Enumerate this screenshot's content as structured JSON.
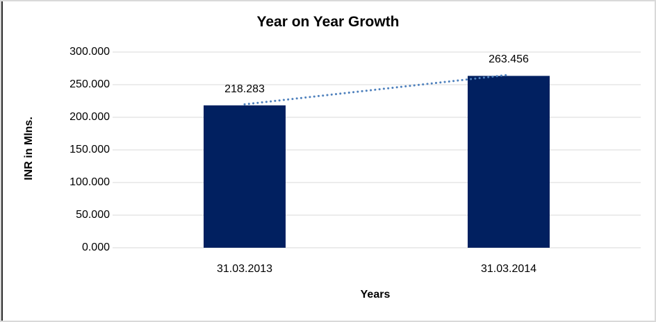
{
  "chart": {
    "title": "Year on Year Growth",
    "y_axis_title": "INR in Mlns.",
    "x_axis_title": "Years"
  },
  "chart_data": {
    "type": "bar",
    "title": "Year on Year Growth",
    "xlabel": "Years",
    "ylabel": "INR in Mlns.",
    "categories": [
      "31.03.2013",
      "31.03.2014"
    ],
    "values": [
      218.283,
      263.456
    ],
    "value_labels": [
      "218.283",
      "263.456"
    ],
    "ylim": [
      0,
      300
    ],
    "yticks": [
      {
        "value": 0,
        "label": "0.000"
      },
      {
        "value": 50,
        "label": "50.000"
      },
      {
        "value": 100,
        "label": "100.000"
      },
      {
        "value": 150,
        "label": "150.000"
      },
      {
        "value": 200,
        "label": "200.000"
      },
      {
        "value": 250,
        "label": "250.000"
      },
      {
        "value": 300,
        "label": "300.000"
      }
    ],
    "grid": "horizontal",
    "legend": "none",
    "bar_color": "#012060",
    "trendline": {
      "style": "dotted",
      "color": "#4F81BD"
    }
  },
  "colors": {
    "gridline": "#d9d9d9",
    "frame_border": "#d9d9d9",
    "left_edge": "#2b2b2b",
    "text": "#000000"
  }
}
